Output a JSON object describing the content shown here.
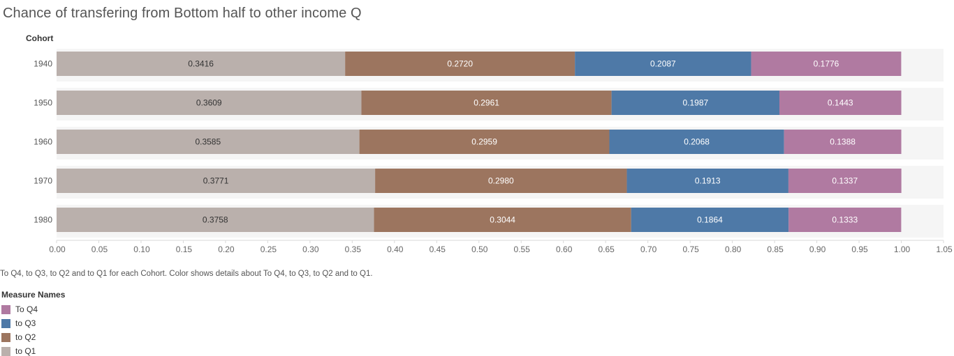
{
  "title": "Chance of transfering from Bottom half to other income Q",
  "caption": "To Q4, to Q3, to Q2 and to Q1 for each Cohort.  Color shows details about To Q4, to Q3, to Q2 and to Q1.",
  "legend": {
    "title": "Measure Names",
    "items": [
      {
        "label": "To Q4",
        "color": "#b07aa1"
      },
      {
        "label": "to Q3",
        "color": "#4e79a7"
      },
      {
        "label": "to Q2",
        "color": "#9c755f"
      },
      {
        "label": "to Q1",
        "color": "#bab0ac"
      }
    ]
  },
  "chart_data": {
    "type": "bar",
    "orientation": "horizontal",
    "stacked": true,
    "row_header": "Cohort",
    "categories": [
      "1940",
      "1950",
      "1960",
      "1970",
      "1980"
    ],
    "series": [
      {
        "name": "to Q1",
        "color": "#bab0ac",
        "label_color": "#333333",
        "values": [
          0.3416,
          0.3609,
          0.3585,
          0.3771,
          0.3758
        ],
        "labels": [
          "0.3416",
          "0.3609",
          "0.3585",
          "0.3771",
          "0.3758"
        ]
      },
      {
        "name": "to Q2",
        "color": "#9c755f",
        "label_color": "#ffffff",
        "values": [
          0.272,
          0.2961,
          0.2959,
          0.298,
          0.3044
        ],
        "labels": [
          "0.2720",
          "0.2961",
          "0.2959",
          "0.2980",
          "0.3044"
        ]
      },
      {
        "name": "to Q3",
        "color": "#4e79a7",
        "label_color": "#ffffff",
        "values": [
          0.2087,
          0.1987,
          0.2068,
          0.1913,
          0.1864
        ],
        "labels": [
          "0.2087",
          "0.1987",
          "0.2068",
          "0.1913",
          "0.1864"
        ]
      },
      {
        "name": "To Q4",
        "color": "#b07aa1",
        "label_color": "#ffffff",
        "values": [
          0.1776,
          0.1443,
          0.1388,
          0.1337,
          0.1333
        ],
        "labels": [
          "0.1776",
          "0.1443",
          "0.1388",
          "0.1337",
          "0.1333"
        ]
      }
    ],
    "xlim": [
      0,
      1.05
    ],
    "xticks": [
      "0.00",
      "0.05",
      "0.10",
      "0.15",
      "0.20",
      "0.25",
      "0.30",
      "0.35",
      "0.40",
      "0.45",
      "0.50",
      "0.55",
      "0.60",
      "0.65",
      "0.70",
      "0.75",
      "0.80",
      "0.85",
      "0.90",
      "0.95",
      "1.00",
      "1.05"
    ],
    "grid": "horizontal row bands",
    "legend_position": "bottom-left"
  }
}
